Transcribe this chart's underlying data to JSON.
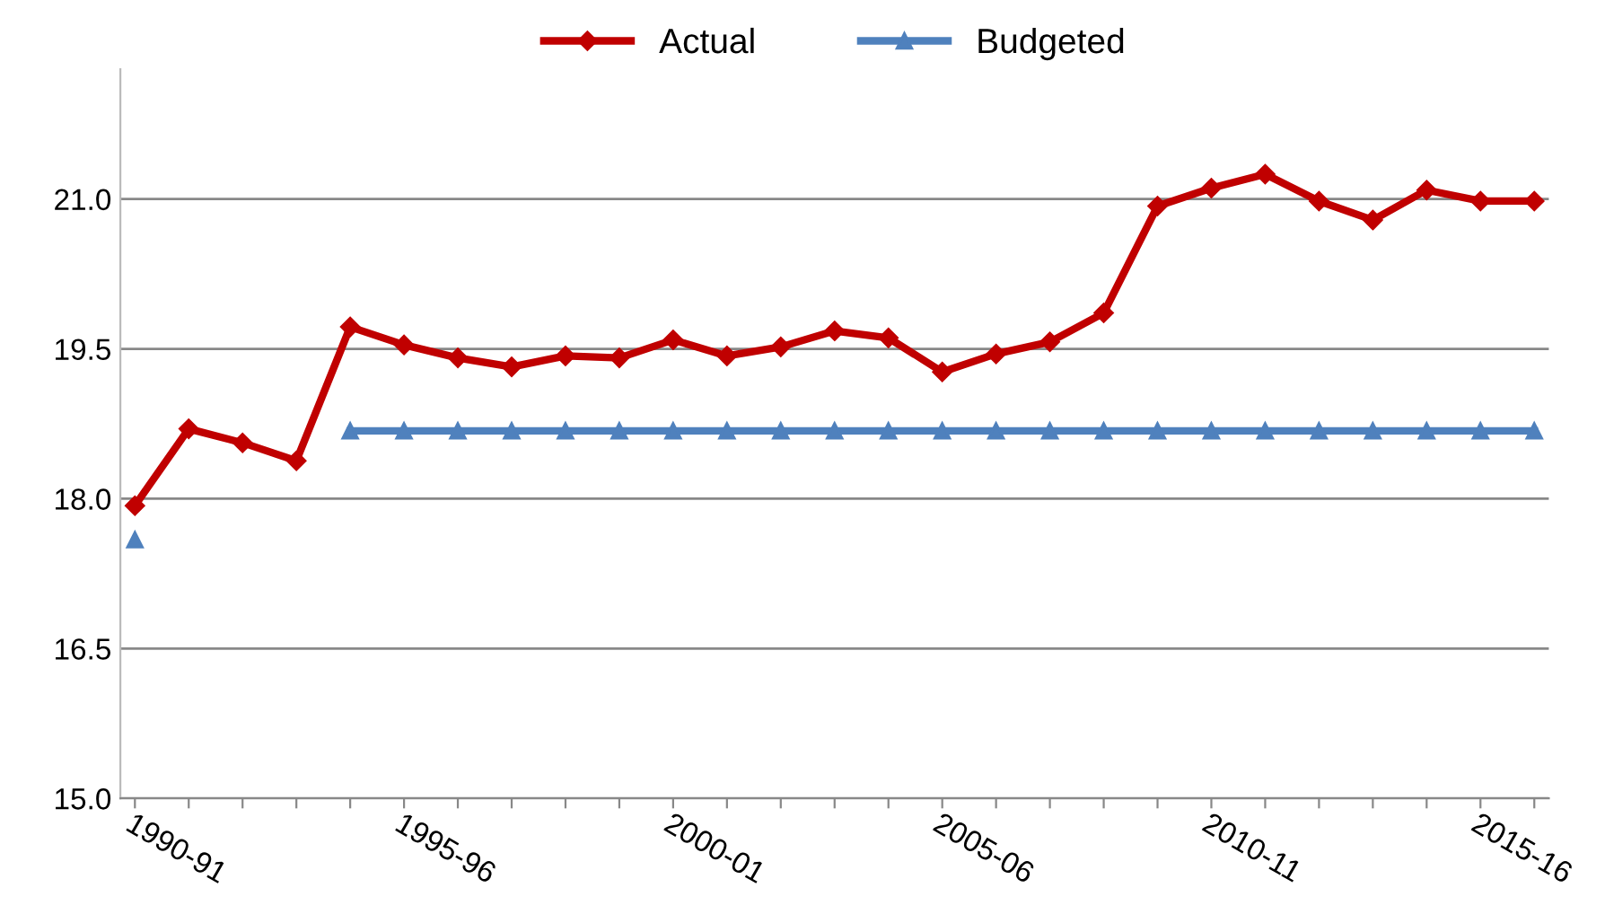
{
  "chart_data": {
    "type": "line",
    "categories": [
      "1990-91",
      null,
      null,
      null,
      null,
      "1995-96",
      null,
      null,
      null,
      null,
      "2000-01",
      null,
      null,
      null,
      null,
      "2005-06",
      null,
      null,
      null,
      null,
      "2010-11",
      null,
      null,
      null,
      null,
      "2015-16",
      null
    ],
    "series": [
      {
        "name": "Actual",
        "color": "#c00000",
        "marker": "diamond",
        "values": [
          17.93,
          18.7,
          18.56,
          18.38,
          19.72,
          19.54,
          19.41,
          19.32,
          19.43,
          19.41,
          19.59,
          19.43,
          19.52,
          19.68,
          19.61,
          19.27,
          19.45,
          19.57,
          19.86,
          20.93,
          21.11,
          21.25,
          20.98,
          20.79,
          21.09,
          20.98,
          20.98
        ]
      },
      {
        "name": "Budgeted",
        "color": "#4f81bd",
        "marker": "triangle",
        "values": [
          17.59,
          null,
          null,
          null,
          18.68,
          18.68,
          18.68,
          18.68,
          18.68,
          18.68,
          18.68,
          18.68,
          18.68,
          18.68,
          18.68,
          18.68,
          18.68,
          18.68,
          18.68,
          18.68,
          18.68,
          18.68,
          18.68,
          18.68,
          18.68,
          18.68,
          18.68
        ]
      }
    ],
    "ylim": [
      15,
      22.3
    ],
    "yticks": [
      {
        "value": 15,
        "label": "15.0"
      },
      {
        "value": 16.5,
        "label": "16.5"
      },
      {
        "value": 18,
        "label": "18.0"
      },
      {
        "value": 19.5,
        "label": "19.5"
      },
      {
        "value": 21,
        "label": "21.0"
      }
    ],
    "grid": "y",
    "legend": "top",
    "line_style": "solid"
  }
}
